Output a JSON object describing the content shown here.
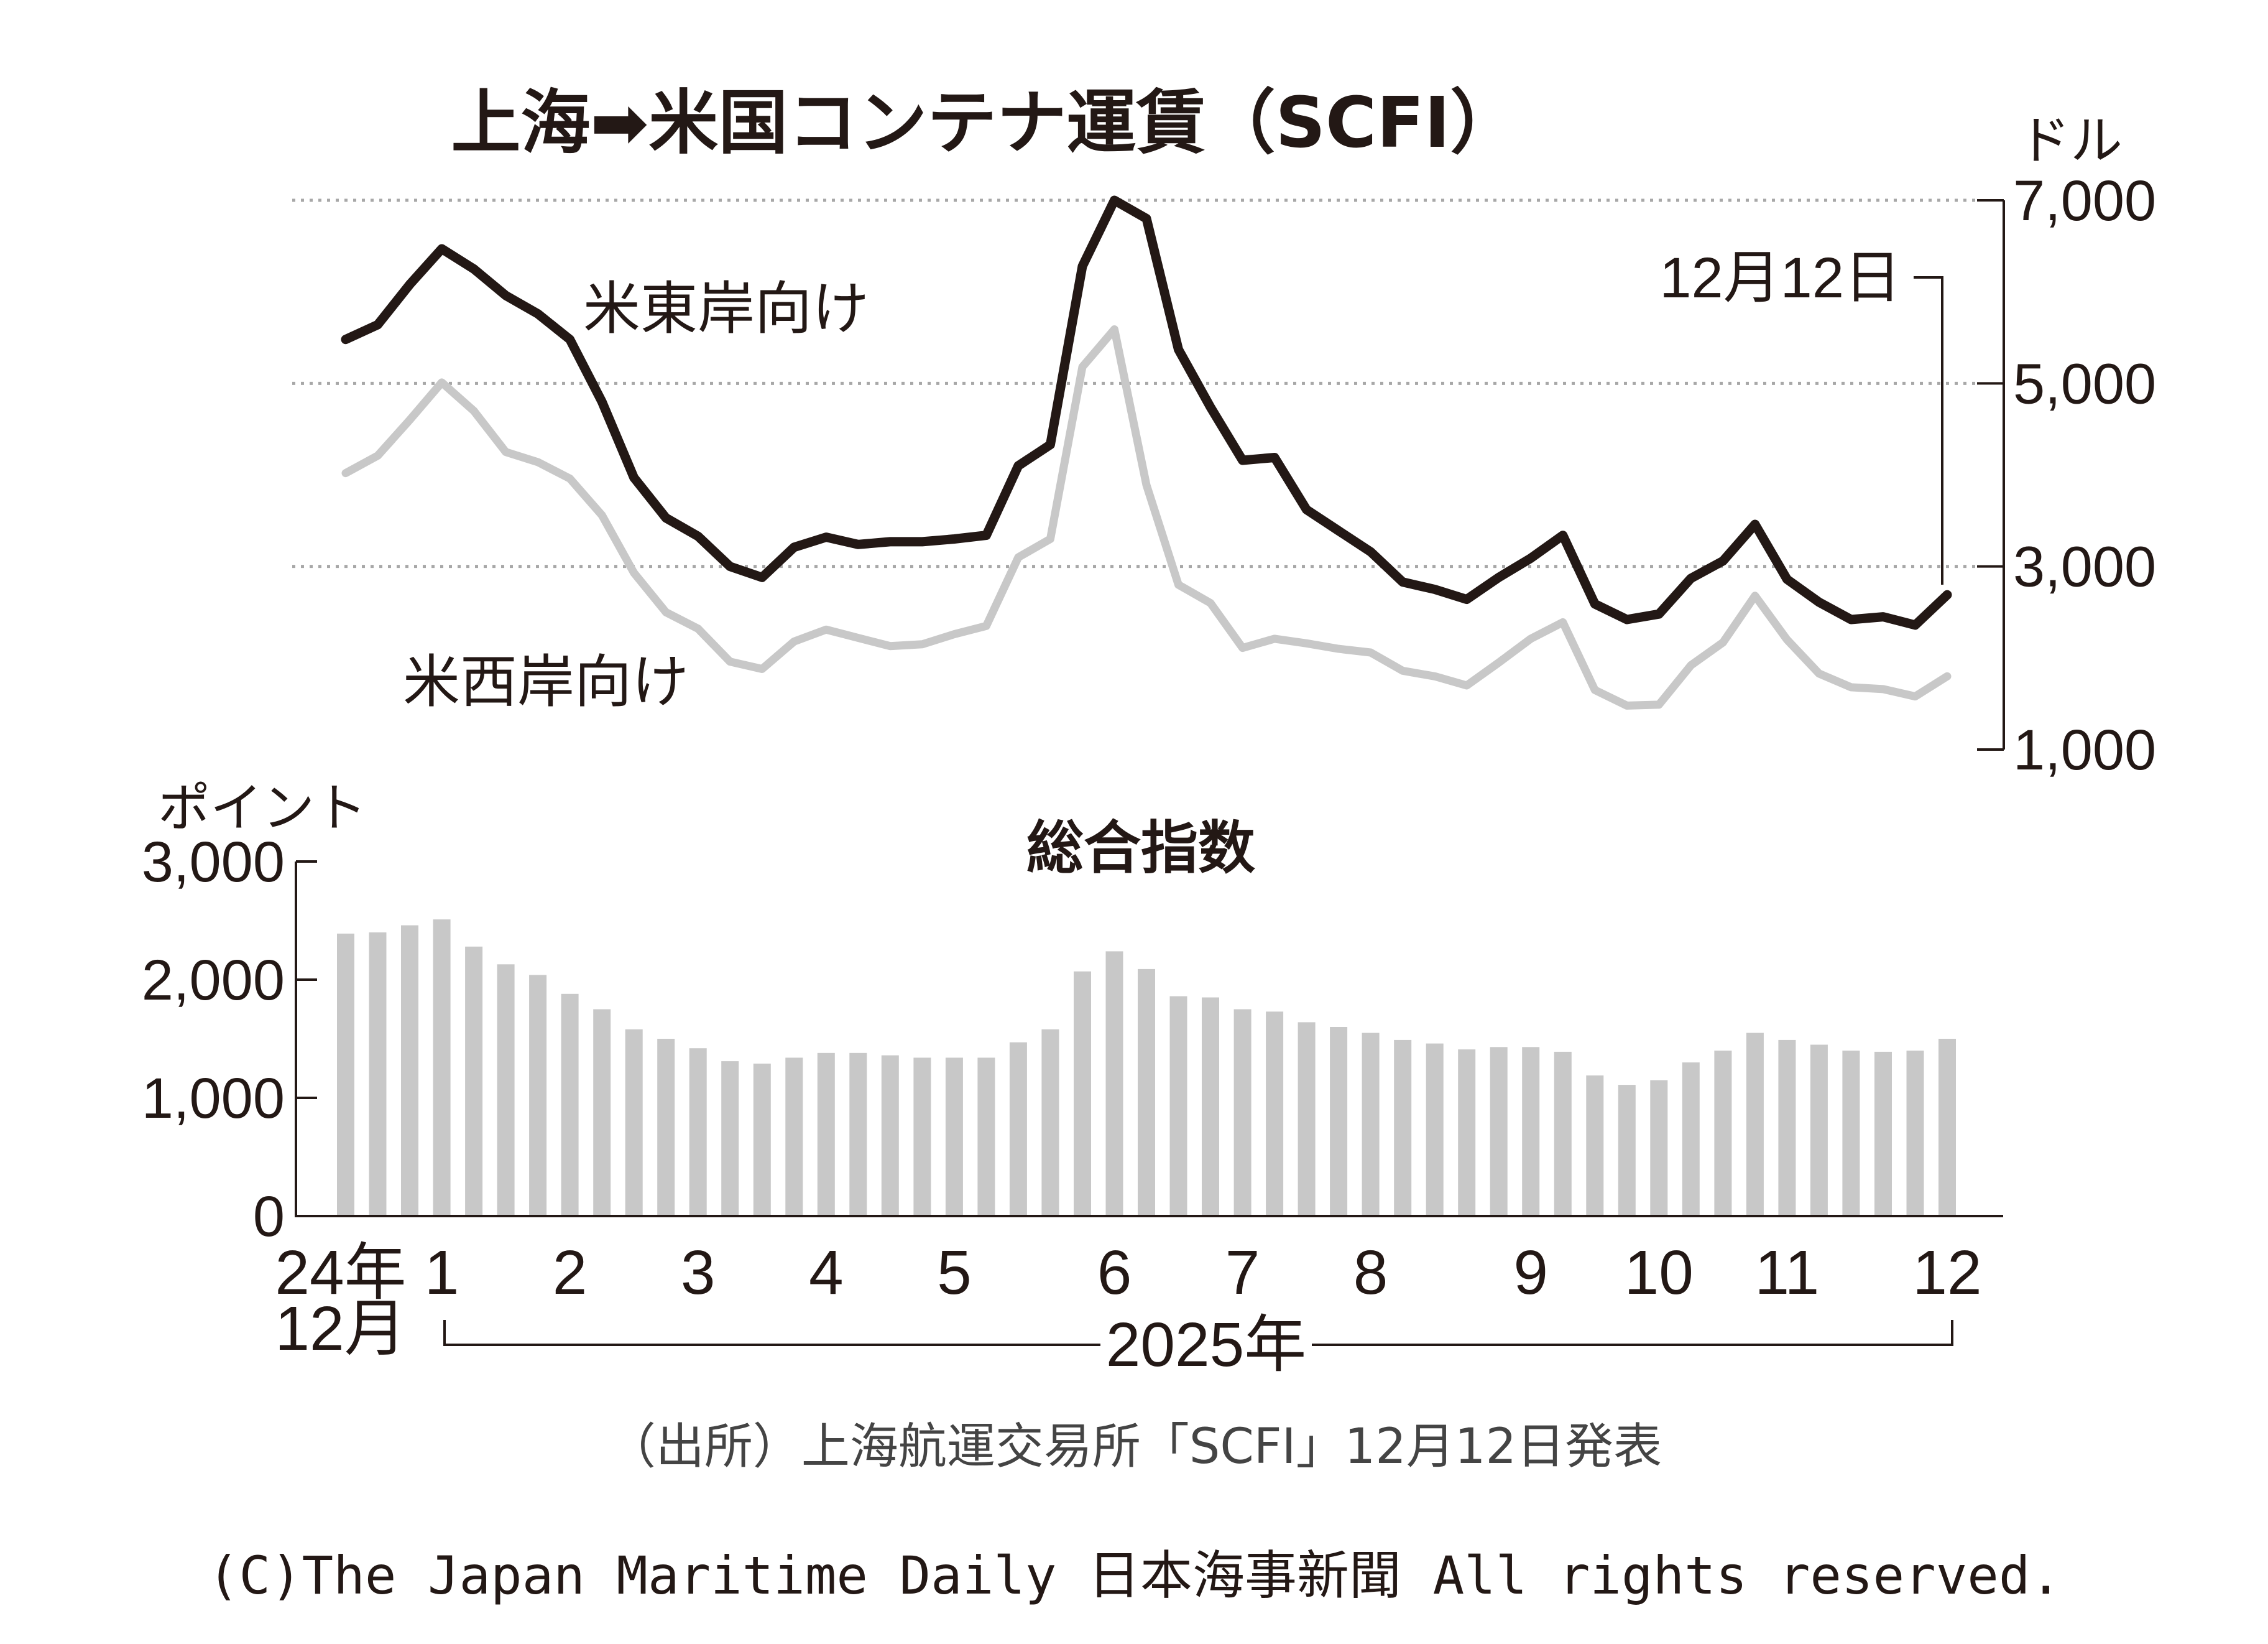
{
  "chart_data": [
    {
      "type": "line",
      "title": "上海➡米国コンテナ運賃（SCFI）",
      "ylabel": "ドル",
      "ylim": [
        1000,
        7000
      ],
      "yticks": [
        1000,
        3000,
        5000,
        7000
      ],
      "ytick_labels": [
        "1,000",
        "3,000",
        "5,000",
        "7,000"
      ],
      "grid": true,
      "annotation": "12月12日",
      "series": [
        {
          "name": "米東岸向け",
          "color": "#231815",
          "values": [
            5480,
            5640,
            6080,
            6470,
            6250,
            5960,
            5760,
            5480,
            4800,
            3970,
            3530,
            3330,
            3000,
            2880,
            3210,
            3320,
            3240,
            3270,
            3270,
            3300,
            3340,
            4100,
            4330,
            6280,
            7000,
            6800,
            5370,
            4740,
            4160,
            4190,
            3620,
            3390,
            3160,
            2830,
            2750,
            2640,
            2880,
            3090,
            3340,
            2590,
            2420,
            2480,
            2870,
            3060,
            3460,
            2860,
            2610,
            2420,
            2450,
            2360,
            2690
          ]
        },
        {
          "name": "米西岸向け",
          "color": "#c8c8c8",
          "values": [
            4020,
            4210,
            4600,
            5010,
            4700,
            4250,
            4140,
            3960,
            3560,
            2930,
            2500,
            2320,
            1960,
            1880,
            2180,
            2310,
            2220,
            2130,
            2150,
            2260,
            2350,
            3100,
            3300,
            5180,
            5590,
            3890,
            2800,
            2600,
            2110,
            2210,
            2160,
            2100,
            2060,
            1860,
            1800,
            1700,
            1950,
            2210,
            2390,
            1650,
            1480,
            1490,
            1920,
            2170,
            2680,
            2200,
            1830,
            1680,
            1660,
            1580,
            1800
          ]
        }
      ]
    },
    {
      "type": "bar",
      "title": "総合指数",
      "ylabel": "ポイント",
      "ylim": [
        0,
        3000
      ],
      "yticks": [
        0,
        1000,
        2000,
        3000
      ],
      "ytick_labels": [
        "0",
        "1,000",
        "2,000",
        "3,000"
      ],
      "color": "#c8c8c8",
      "values": [
        2390,
        2400,
        2460,
        2510,
        2280,
        2130,
        2040,
        1880,
        1750,
        1580,
        1500,
        1420,
        1310,
        1290,
        1340,
        1380,
        1380,
        1360,
        1340,
        1340,
        1340,
        1470,
        1580,
        2070,
        2240,
        2090,
        1860,
        1850,
        1750,
        1730,
        1640,
        1600,
        1550,
        1490,
        1460,
        1410,
        1430,
        1430,
        1390,
        1190,
        1110,
        1150,
        1300,
        1400,
        1550,
        1490,
        1450,
        1400,
        1390,
        1400,
        1500
      ],
      "x_labels": [
        {
          "index": 0,
          "text": "24年"
        },
        {
          "index": 3,
          "text": "1"
        },
        {
          "index": 7,
          "text": "2"
        },
        {
          "index": 11,
          "text": "3"
        },
        {
          "index": 15,
          "text": "4"
        },
        {
          "index": 19,
          "text": "5"
        },
        {
          "index": 24,
          "text": "6"
        },
        {
          "index": 28,
          "text": "7"
        },
        {
          "index": 32,
          "text": "8"
        },
        {
          "index": 37,
          "text": "9"
        },
        {
          "index": 41,
          "text": "10"
        },
        {
          "index": 45,
          "text": "11"
        },
        {
          "index": 50,
          "text": "12"
        }
      ],
      "x_sublabel_first": "12月",
      "year_label": "2025年"
    }
  ],
  "source": "（出所）上海航運交易所「SCFI」12月12日発表",
  "copyright": "(C)The Japan Maritime Daily 日本海事新聞 All rights reserved."
}
